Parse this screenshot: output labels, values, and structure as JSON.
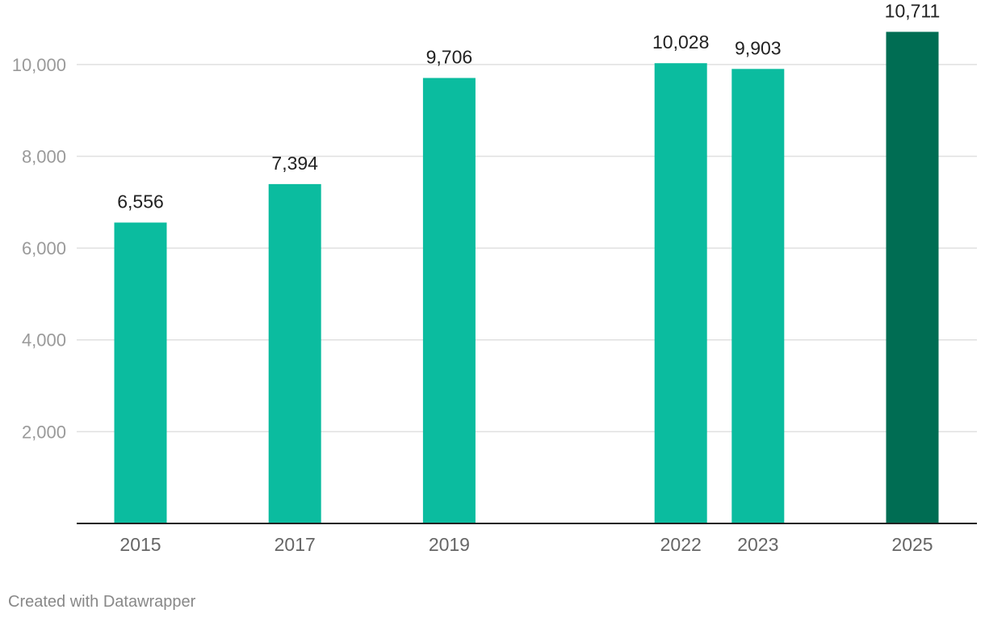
{
  "chart_data": {
    "type": "bar",
    "categories": [
      "2015",
      "2017",
      "2019",
      "2022",
      "2023",
      "2025"
    ],
    "x": [
      2015,
      2017,
      2019,
      2022,
      2023,
      2025
    ],
    "values": [
      6556,
      7394,
      9706,
      10028,
      9903,
      10711
    ],
    "value_labels": [
      "6,556",
      "7,394",
      "9,706",
      "10,028",
      "9,903",
      "10,711"
    ],
    "y_ticks": [
      2000,
      4000,
      6000,
      8000,
      10000
    ],
    "y_tick_labels": [
      "2,000",
      "4,000",
      "6,000",
      "8,000",
      "10,000"
    ],
    "ylim": [
      0,
      11000
    ],
    "grid": true,
    "title": "",
    "xlabel": "",
    "ylabel": "",
    "colors": {
      "bar": "#0bbc9f",
      "highlight": "#006d53",
      "gridline": "#e0e0e0",
      "baseline": "#222222"
    },
    "highlight_index": 5
  },
  "footer": {
    "credit": "Created with Datawrapper"
  }
}
